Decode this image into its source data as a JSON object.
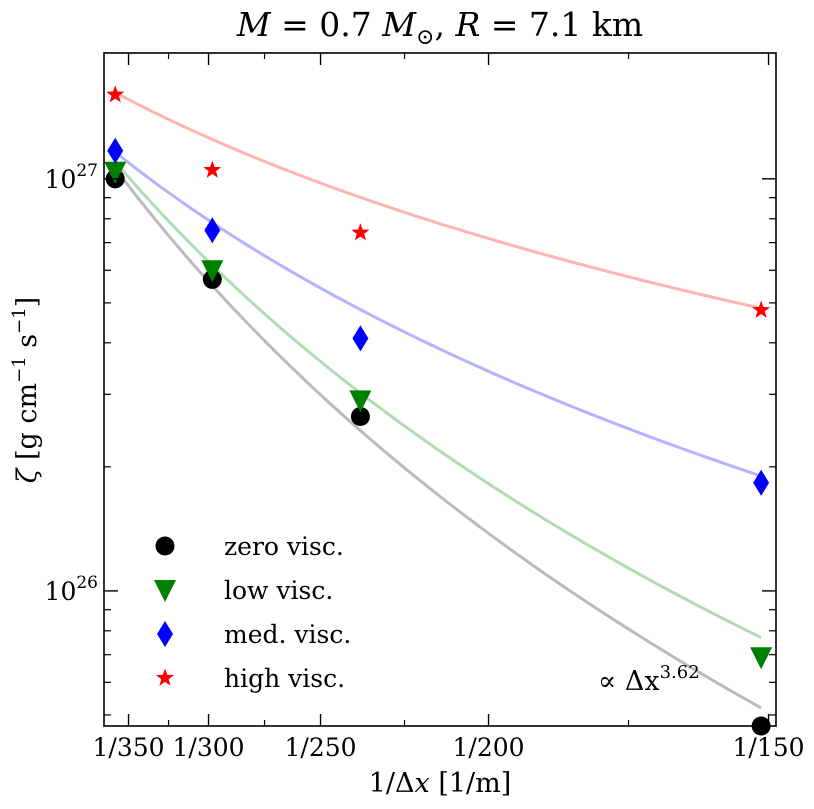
{
  "chart_data": {
    "type": "scatter",
    "title": "M = 0.7 M⊙,  R = 7.1 km",
    "xlabel": "1/Δx [1/m]",
    "ylabel": "ζ [g cm⁻¹ s⁻¹]",
    "xscale": "linear (in 1/Δx)",
    "yscale": "log",
    "xlim": [
      0.002711,
      0.006711
    ],
    "ylim": [
      4.7e+25,
      2.02e+27
    ],
    "x_tick_values": [
      0.0028571,
      0.0033333,
      0.004,
      0.005,
      0.0066667
    ],
    "x_tick_labels": [
      "1/350",
      "1/300",
      "1/250",
      "1/200",
      "1/150"
    ],
    "y_tick_labels": [
      {
        "value": 1e+26,
        "base": "10",
        "exp": "26"
      },
      {
        "value": 1e+27,
        "base": "10",
        "exp": "27"
      }
    ],
    "x": [
      0.0027778,
      0.0033557,
      0.0042373,
      0.0066225
    ],
    "series": [
      {
        "name": "zero visc.",
        "marker": "circle",
        "color": "#000000",
        "fit_color": "#bbbbbb",
        "values": [
          1e+27,
          5.7e+26,
          2.65e+26,
          4.7e+25
        ],
        "fit": [
          1.06e+27,
          5.2e+25
        ]
      },
      {
        "name": "low visc.",
        "marker": "triangle-down",
        "color": "#008000",
        "fit_color": "#b3dbb3",
        "values": [
          1.04e+27,
          6e+26,
          2.9e+26,
          6.9e+25
        ],
        "fit": [
          1.1e+27,
          7.7e+25
        ]
      },
      {
        "name": "med. visc.",
        "marker": "diamond",
        "color": "#0000ff",
        "fit_color": "#b3b3ff",
        "values": [
          1.17e+27,
          7.5e+26,
          4.1e+26,
          1.83e+26
        ],
        "fit": [
          1.16e+27,
          1.9e+26
        ]
      },
      {
        "name": "high visc.",
        "marker": "star",
        "color": "#ff0000",
        "fit_color": "#ffb3b3",
        "values": [
          1.6e+27,
          1.05e+27,
          7.4e+26,
          4.8e+26
        ],
        "fit": [
          1.62e+27,
          4.85e+26
        ]
      }
    ],
    "annotation": {
      "prefix": "∝ Δx",
      "exponent": "3.62"
    },
    "legend_position": "lower-left"
  }
}
